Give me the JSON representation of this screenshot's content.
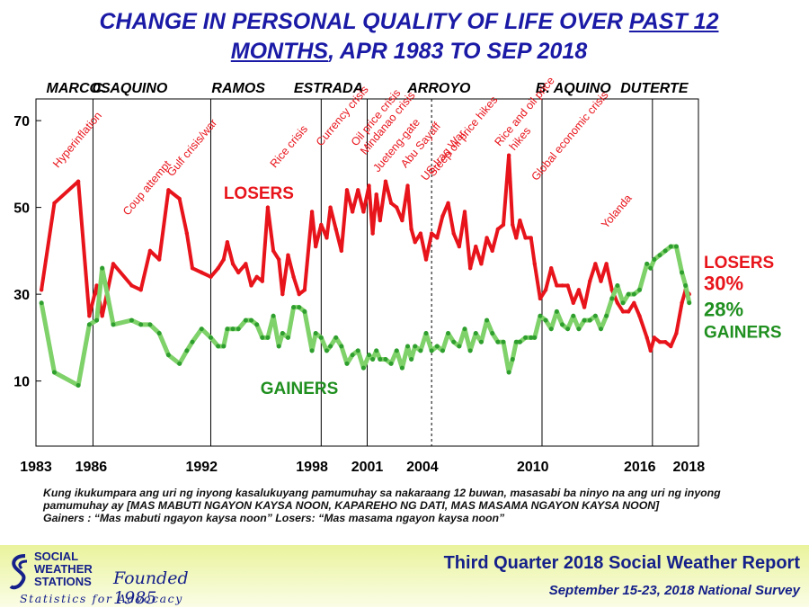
{
  "title": {
    "line1_a": "CHANGE IN PERSONAL QUALITY OF LIFE OVER ",
    "line1_b": "PAST 12",
    "line2_a": "MONTHS",
    "line2_b": ", APR 1983 TO SEP 2018"
  },
  "question": {
    "text": "Kung ikukumpara ang uri ng inyong kasalukuyang pamumuhay sa nakaraang 12 buwan, masasabi ba ninyo na ang uri ng inyong pamumuhay ay [MAS MABUTI NGAYON KAYSA NOON, KAPAREHO NG DATI, MAS MASAMA NGAYON KAYSA NOON]",
    "definitions": "Gainers : “Mas mabuti ngayon kaysa noon”      Losers: “Mas masama ngayon kaysa noon”"
  },
  "footer": {
    "logo_line1": "SOCIAL",
    "logo_line2": "WEATHER",
    "logo_line3": "STATIONS",
    "founded": "Founded 1985",
    "tagline": "Statistics for Advocacy",
    "report_title": "Third Quarter 2018 Social Weather Report",
    "report_subtitle": "September 15-23, 2018 National Survey"
  },
  "colors": {
    "losers": "#e8141b",
    "gainers": "#2e9e2e",
    "gainers_stroke": "#7fd16a",
    "title": "#1a1aa6",
    "annotation": "#e8141b"
  },
  "chart_data": {
    "type": "line",
    "ylim": [
      -5,
      75
    ],
    "xlim": [
      1983.0,
      2019.0
    ],
    "yticks": [
      10,
      30,
      50,
      70
    ],
    "xticks": [
      "1983",
      "1986",
      "1992",
      "1998",
      "2001",
      "2004",
      "2010",
      "2016",
      "2018"
    ],
    "xtick_values": [
      1983.0,
      1986.0,
      1992.0,
      1998.0,
      2001.0,
      2004.0,
      2010.0,
      2016.0,
      2018.0
    ],
    "grid": false,
    "series": [
      {
        "name": "LOSERS",
        "end_label": "30%",
        "points": [
          [
            1983.3,
            31
          ],
          [
            1984.0,
            51
          ],
          [
            1985.3,
            56
          ],
          [
            1985.9,
            25
          ],
          [
            1986.3,
            32
          ],
          [
            1986.6,
            25
          ],
          [
            1987.2,
            37
          ],
          [
            1988.2,
            32
          ],
          [
            1988.7,
            31
          ],
          [
            1989.2,
            40
          ],
          [
            1989.7,
            38
          ],
          [
            1990.2,
            54
          ],
          [
            1990.8,
            52
          ],
          [
            1991.2,
            44
          ],
          [
            1991.5,
            36
          ],
          [
            1992.0,
            35
          ],
          [
            1992.5,
            34
          ],
          [
            1992.9,
            36
          ],
          [
            1993.2,
            38
          ],
          [
            1993.4,
            42
          ],
          [
            1993.7,
            37
          ],
          [
            1994.0,
            35
          ],
          [
            1994.4,
            37
          ],
          [
            1994.7,
            32
          ],
          [
            1995.0,
            34
          ],
          [
            1995.3,
            33
          ],
          [
            1995.6,
            50
          ],
          [
            1995.9,
            40
          ],
          [
            1996.2,
            38
          ],
          [
            1996.4,
            30
          ],
          [
            1996.7,
            39
          ],
          [
            1997.0,
            34
          ],
          [
            1997.3,
            30
          ],
          [
            1997.6,
            31
          ],
          [
            1998.0,
            49
          ],
          [
            1998.2,
            41
          ],
          [
            1998.5,
            46
          ],
          [
            1998.8,
            43
          ],
          [
            1999.0,
            50
          ],
          [
            1999.3,
            45
          ],
          [
            1999.6,
            40
          ],
          [
            1999.9,
            54
          ],
          [
            2000.2,
            49
          ],
          [
            2000.5,
            54
          ],
          [
            2000.8,
            49
          ],
          [
            2001.1,
            55
          ],
          [
            2001.3,
            44
          ],
          [
            2001.5,
            53
          ],
          [
            2001.7,
            47
          ],
          [
            2002.0,
            56
          ],
          [
            2002.3,
            51
          ],
          [
            2002.6,
            50
          ],
          [
            2002.9,
            47
          ],
          [
            2003.2,
            55
          ],
          [
            2003.4,
            45
          ],
          [
            2003.6,
            42
          ],
          [
            2003.9,
            44
          ],
          [
            2004.2,
            38
          ],
          [
            2004.5,
            44
          ],
          [
            2004.8,
            43
          ],
          [
            2005.1,
            48
          ],
          [
            2005.4,
            51
          ],
          [
            2005.7,
            44
          ],
          [
            2006.0,
            41
          ],
          [
            2006.3,
            49
          ],
          [
            2006.6,
            36
          ],
          [
            2006.9,
            41
          ],
          [
            2007.2,
            37
          ],
          [
            2007.5,
            43
          ],
          [
            2007.8,
            40
          ],
          [
            2008.1,
            45
          ],
          [
            2008.4,
            46
          ],
          [
            2008.7,
            62
          ],
          [
            2008.9,
            46
          ],
          [
            2009.1,
            43
          ],
          [
            2009.3,
            47
          ],
          [
            2009.6,
            43
          ],
          [
            2009.9,
            43
          ],
          [
            2010.1,
            37
          ],
          [
            2010.4,
            29
          ],
          [
            2010.7,
            31
          ],
          [
            2011.0,
            36
          ],
          [
            2011.3,
            32
          ],
          [
            2011.6,
            32
          ],
          [
            2011.9,
            32
          ],
          [
            2012.2,
            28
          ],
          [
            2012.5,
            31
          ],
          [
            2012.8,
            27
          ],
          [
            2013.1,
            33
          ],
          [
            2013.4,
            37
          ],
          [
            2013.7,
            33
          ],
          [
            2014.0,
            37
          ],
          [
            2014.3,
            31
          ],
          [
            2014.6,
            28
          ],
          [
            2014.9,
            26
          ],
          [
            2015.2,
            26
          ],
          [
            2015.5,
            28
          ],
          [
            2015.8,
            25
          ],
          [
            2016.2,
            20
          ],
          [
            2016.4,
            17
          ],
          [
            2016.6,
            20
          ],
          [
            2016.9,
            19
          ],
          [
            2017.2,
            19
          ],
          [
            2017.5,
            18
          ],
          [
            2017.8,
            21
          ],
          [
            2018.1,
            28
          ],
          [
            2018.3,
            31
          ],
          [
            2018.5,
            30
          ]
        ]
      },
      {
        "name": "GAINERS",
        "end_label": "28%",
        "points": [
          [
            1983.3,
            28
          ],
          [
            1984.0,
            12
          ],
          [
            1985.3,
            9
          ],
          [
            1985.9,
            23
          ],
          [
            1986.3,
            24
          ],
          [
            1986.6,
            36
          ],
          [
            1987.2,
            23
          ],
          [
            1988.2,
            24
          ],
          [
            1988.7,
            23
          ],
          [
            1989.2,
            23
          ],
          [
            1989.7,
            21
          ],
          [
            1990.2,
            16
          ],
          [
            1990.8,
            14
          ],
          [
            1991.2,
            17
          ],
          [
            1991.5,
            19
          ],
          [
            1992.0,
            22
          ],
          [
            1992.5,
            20
          ],
          [
            1992.9,
            18
          ],
          [
            1993.2,
            18
          ],
          [
            1993.4,
            22
          ],
          [
            1993.7,
            22
          ],
          [
            1994.0,
            22
          ],
          [
            1994.4,
            24
          ],
          [
            1994.7,
            24
          ],
          [
            1995.0,
            23
          ],
          [
            1995.3,
            20
          ],
          [
            1995.6,
            20
          ],
          [
            1995.9,
            25
          ],
          [
            1996.2,
            18
          ],
          [
            1996.4,
            21
          ],
          [
            1996.7,
            20
          ],
          [
            1997.0,
            27
          ],
          [
            1997.3,
            27
          ],
          [
            1997.6,
            26
          ],
          [
            1998.0,
            17
          ],
          [
            1998.2,
            21
          ],
          [
            1998.5,
            20
          ],
          [
            1998.8,
            17
          ],
          [
            1999.0,
            18
          ],
          [
            1999.3,
            20
          ],
          [
            1999.6,
            18
          ],
          [
            1999.9,
            14
          ],
          [
            2000.2,
            16
          ],
          [
            2000.5,
            17
          ],
          [
            2000.8,
            13
          ],
          [
            2001.1,
            16
          ],
          [
            2001.3,
            15
          ],
          [
            2001.5,
            17
          ],
          [
            2001.7,
            15
          ],
          [
            2002.0,
            15
          ],
          [
            2002.3,
            14
          ],
          [
            2002.6,
            17
          ],
          [
            2002.9,
            13
          ],
          [
            2003.2,
            18
          ],
          [
            2003.4,
            15
          ],
          [
            2003.6,
            18
          ],
          [
            2003.9,
            17
          ],
          [
            2004.2,
            21
          ],
          [
            2004.5,
            17
          ],
          [
            2004.8,
            18
          ],
          [
            2005.1,
            17
          ],
          [
            2005.4,
            21
          ],
          [
            2005.7,
            19
          ],
          [
            2006.0,
            18
          ],
          [
            2006.3,
            22
          ],
          [
            2006.6,
            17
          ],
          [
            2006.9,
            21
          ],
          [
            2007.2,
            19
          ],
          [
            2007.5,
            24
          ],
          [
            2007.8,
            21
          ],
          [
            2008.1,
            19
          ],
          [
            2008.4,
            19
          ],
          [
            2008.7,
            12
          ],
          [
            2008.9,
            15
          ],
          [
            2009.1,
            19
          ],
          [
            2009.3,
            19
          ],
          [
            2009.6,
            20
          ],
          [
            2009.9,
            20
          ],
          [
            2010.1,
            20
          ],
          [
            2010.4,
            25
          ],
          [
            2010.7,
            24
          ],
          [
            2011.0,
            22
          ],
          [
            2011.3,
            26
          ],
          [
            2011.6,
            23
          ],
          [
            2011.9,
            22
          ],
          [
            2012.2,
            25
          ],
          [
            2012.5,
            22
          ],
          [
            2012.8,
            24
          ],
          [
            2013.1,
            24
          ],
          [
            2013.4,
            25
          ],
          [
            2013.7,
            22
          ],
          [
            2014.0,
            25
          ],
          [
            2014.3,
            29
          ],
          [
            2014.6,
            32
          ],
          [
            2014.9,
            28
          ],
          [
            2015.2,
            30
          ],
          [
            2015.5,
            30
          ],
          [
            2015.8,
            31
          ],
          [
            2016.2,
            37
          ],
          [
            2016.4,
            36
          ],
          [
            2016.6,
            38
          ],
          [
            2016.9,
            39
          ],
          [
            2017.2,
            40
          ],
          [
            2017.5,
            41
          ],
          [
            2017.8,
            41
          ],
          [
            2018.1,
            35
          ],
          [
            2018.3,
            32
          ],
          [
            2018.5,
            28
          ]
        ]
      }
    ],
    "administrations": [
      {
        "label": "MARCOS",
        "label_x": 1985.3
      },
      {
        "label": "C. AQUINO",
        "label_x": 1988.1
      },
      {
        "label": "RAMOS",
        "label_x": 1994.0
      },
      {
        "label": "ESTRADA",
        "label_x": 1998.9
      },
      {
        "label": "ARROYO",
        "label_x": 2004.9
      },
      {
        "label": "B. AQUINO",
        "label_x": 2012.2
      },
      {
        "label": "DUTERTE",
        "label_x": 2016.6
      }
    ],
    "administration_boundaries": [
      1986.1,
      1992.5,
      1998.5,
      2001.0,
      2010.5,
      2016.5
    ],
    "dashed_boundary": 2004.5,
    "annotations": [
      {
        "text": "Hyperinflation",
        "x": 1984.2,
        "y": 59
      },
      {
        "text": "Coup attempt",
        "x": 1988.0,
        "y": 48
      },
      {
        "text": "Gulf crisis/war",
        "x": 1990.4,
        "y": 57
      },
      {
        "text": "Rice crisis",
        "x": 1996.0,
        "y": 59
      },
      {
        "text": "Currency crisis",
        "x": 1998.5,
        "y": 64
      },
      {
        "text": "Oil price crisis",
        "x": 2000.4,
        "y": 64
      },
      {
        "text": "Mindanao crisis",
        "x": 2000.9,
        "y": 62
      },
      {
        "text": "Jueteng-gate",
        "x": 2001.6,
        "y": 58
      },
      {
        "text": "Abu Sayaff",
        "x": 2003.1,
        "y": 59
      },
      {
        "text": "US-Iraq War",
        "x": 2004.2,
        "y": 56
      },
      {
        "text": "Steep oil price hikes",
        "x": 2004.6,
        "y": 57
      },
      {
        "text": "Rice and oil price",
        "x": 2008.2,
        "y": 64
      },
      {
        "text": "hikes",
        "x": 2009.0,
        "y": 63
      },
      {
        "text": "Global economic crisis",
        "x": 2010.2,
        "y": 56
      },
      {
        "text": "Yolanda",
        "x": 2014.0,
        "y": 45
      }
    ],
    "inline_labels": [
      {
        "text": "LOSERS",
        "series": "LOSERS",
        "x": 1993.2,
        "y": 52
      },
      {
        "text": "GAINERS",
        "series": "GAINERS",
        "x": 1995.2,
        "y": 7
      },
      {
        "text": "LOSERS",
        "series": "LOSERS",
        "side": "right",
        "y": 36
      },
      {
        "text": "GAINERS",
        "series": "GAINERS",
        "side": "right",
        "y": 20
      }
    ]
  }
}
